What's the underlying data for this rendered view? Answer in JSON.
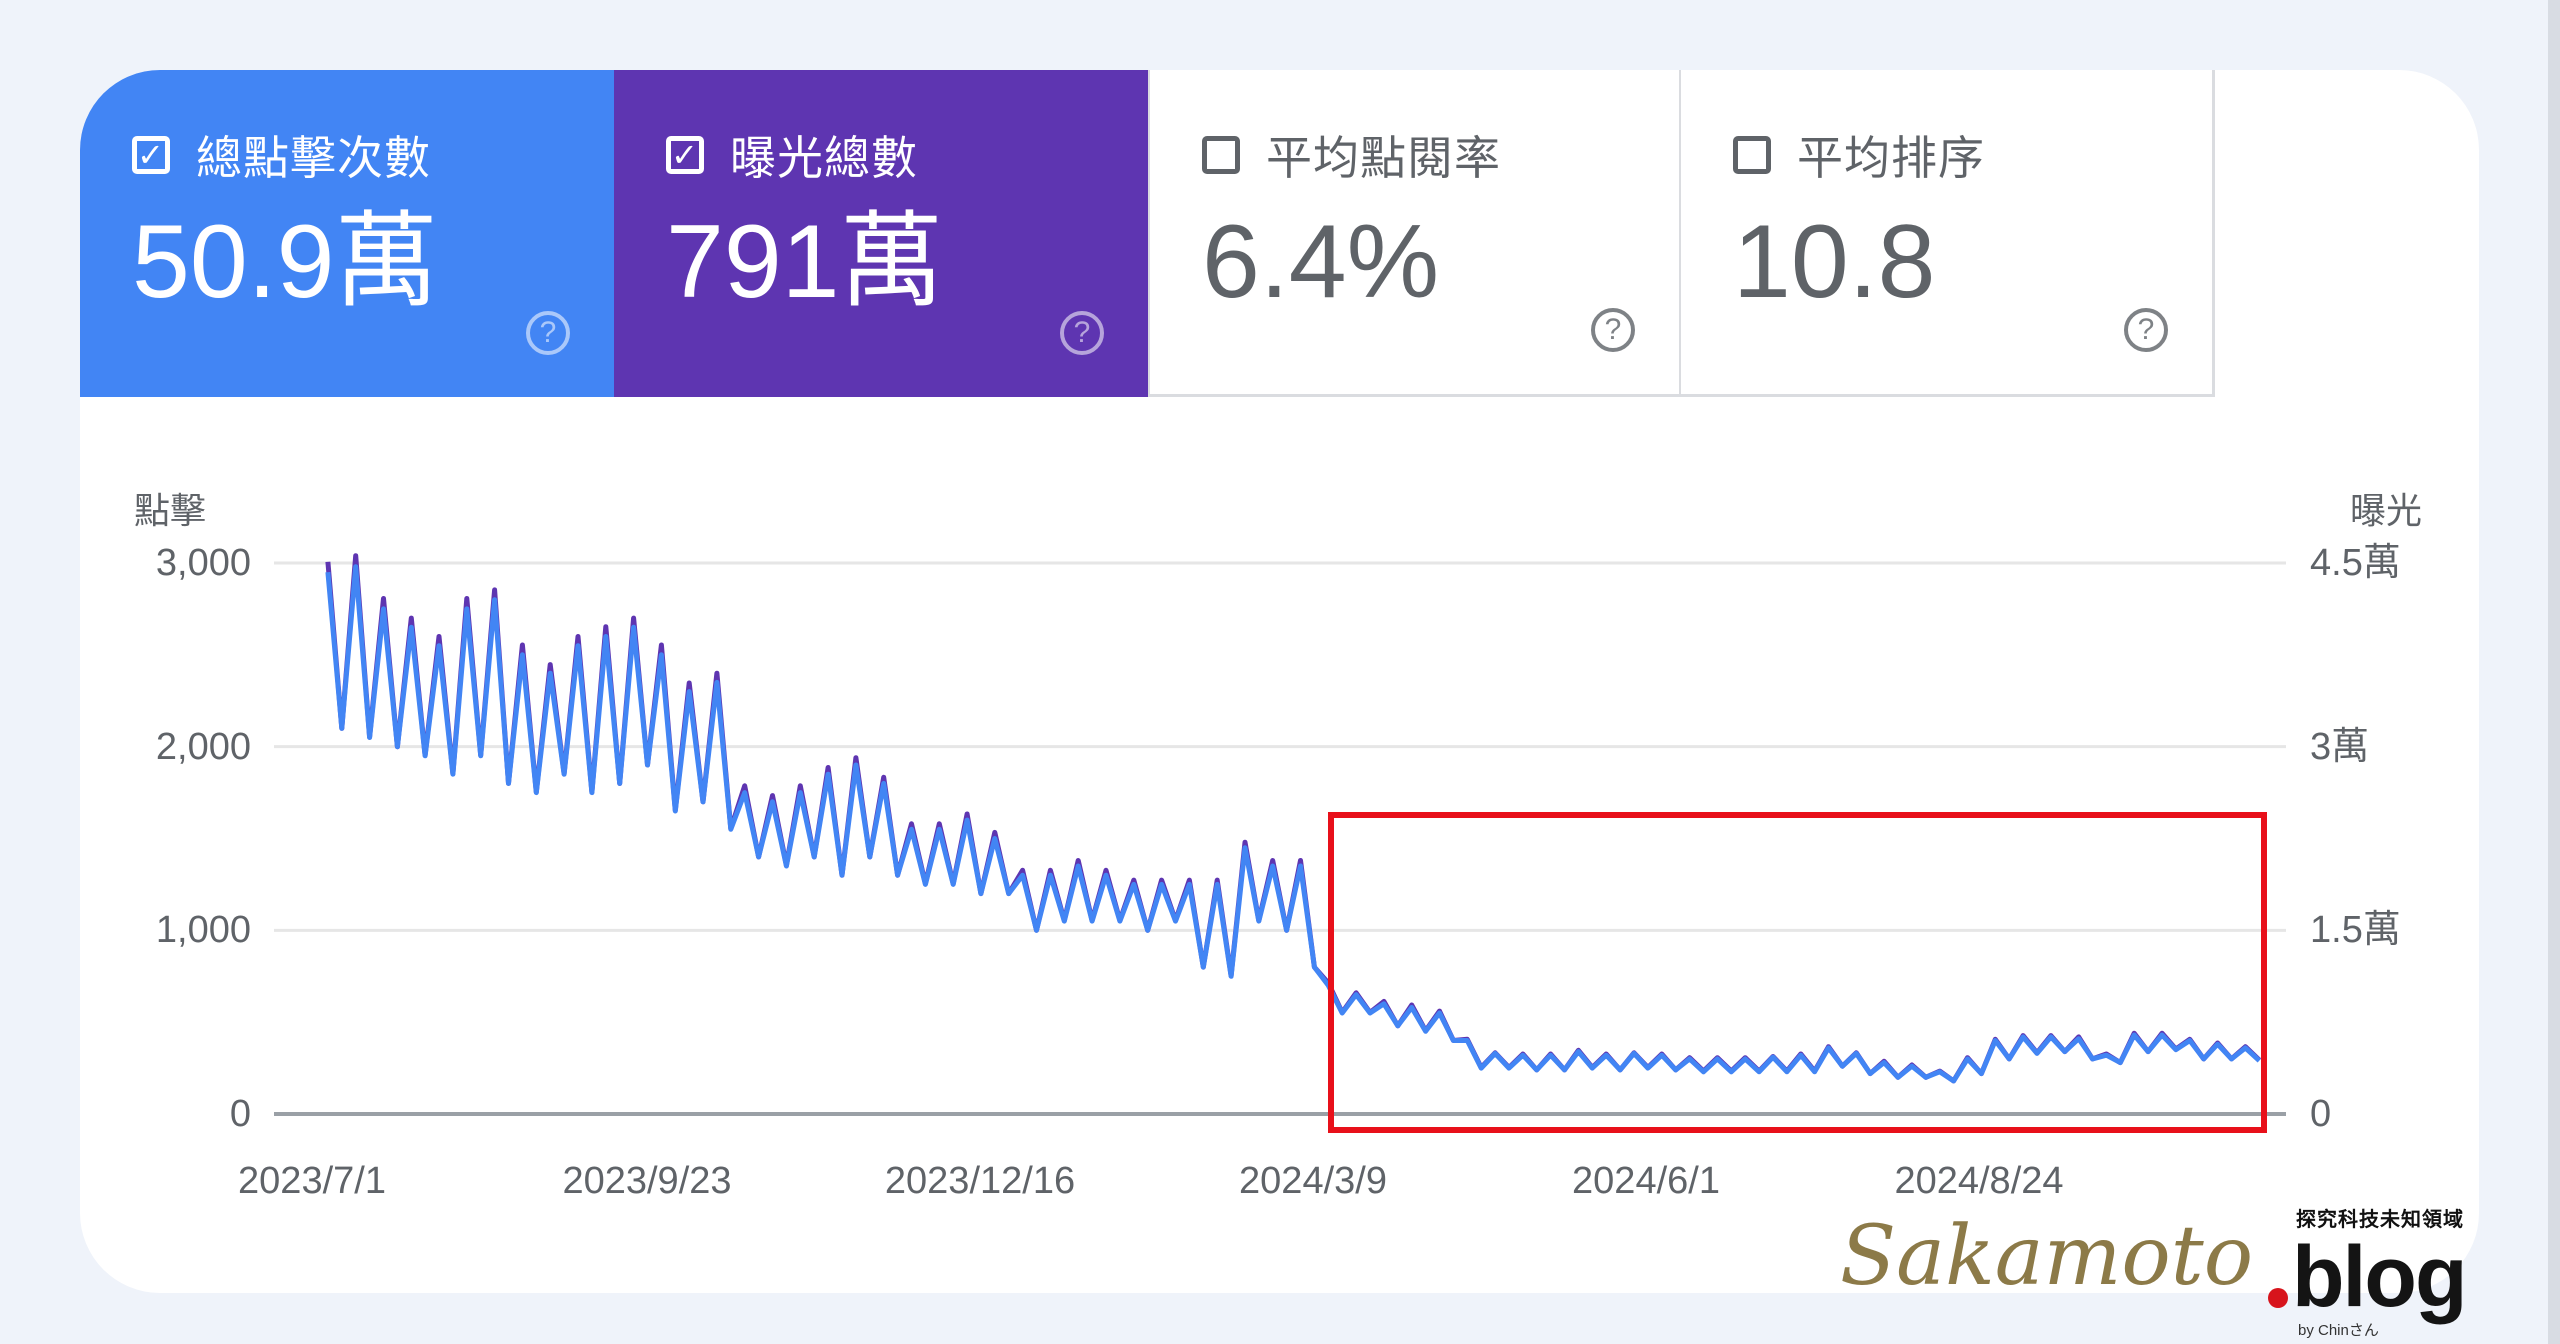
{
  "metrics": [
    {
      "label": "總點擊次數",
      "value": "50.9萬",
      "checked": true,
      "color": "#4285f4"
    },
    {
      "label": "曝光總數",
      "value": "791萬",
      "checked": true,
      "color": "#5e35b1"
    },
    {
      "label": "平均點閱率",
      "value": "6.4%",
      "checked": false
    },
    {
      "label": "平均排序",
      "value": "10.8",
      "checked": false
    }
  ],
  "icons": {
    "checked": "✓",
    "help": "?"
  },
  "watermark": {
    "brand": "Sakamoto",
    "tld": "blog",
    "tagline": "探究科技未知領域",
    "byline": "by Chinさん"
  },
  "chart_data": {
    "type": "line",
    "left_axis_title": "點擊",
    "right_axis_title": "曝光",
    "left_ylim": [
      0,
      3000
    ],
    "right_ylim": [
      0,
      4.5
    ],
    "left_ticks": [
      "0",
      "1,000",
      "2,000",
      "3,000"
    ],
    "right_ticks": [
      "0",
      "1.5萬",
      "3萬",
      "4.5萬"
    ],
    "x_ticks": [
      "2023/7/1",
      "2023/9/23",
      "2023/12/16",
      "2024/3/9",
      "2024/6/1",
      "2024/8/24"
    ],
    "xlim": [
      "2023-07-01",
      "2024-10-31"
    ],
    "grid": true,
    "highlight_box": {
      "from": "2024-03-11",
      "to": "2024-10-31",
      "color": "#e8101a"
    },
    "weeks": [
      "2023-07-03",
      "2023-07-10",
      "2023-07-17",
      "2023-07-24",
      "2023-07-31",
      "2023-08-07",
      "2023-08-14",
      "2023-08-21",
      "2023-08-28",
      "2023-09-04",
      "2023-09-11",
      "2023-09-18",
      "2023-09-25",
      "2023-10-02",
      "2023-10-09",
      "2023-10-16",
      "2023-10-23",
      "2023-10-30",
      "2023-11-06",
      "2023-11-13",
      "2023-11-20",
      "2023-11-27",
      "2023-12-04",
      "2023-12-11",
      "2023-12-18",
      "2023-12-25",
      "2024-01-01",
      "2024-01-08",
      "2024-01-15",
      "2024-01-22",
      "2024-01-29",
      "2024-02-05",
      "2024-02-12",
      "2024-02-19",
      "2024-02-26",
      "2024-03-04",
      "2024-03-11",
      "2024-03-18",
      "2024-03-25",
      "2024-04-01",
      "2024-04-08",
      "2024-04-15",
      "2024-04-22",
      "2024-04-29",
      "2024-05-06",
      "2024-05-13",
      "2024-05-20",
      "2024-05-27",
      "2024-06-03",
      "2024-06-10",
      "2024-06-17",
      "2024-06-24",
      "2024-07-01",
      "2024-07-08",
      "2024-07-15",
      "2024-07-22",
      "2024-07-29",
      "2024-08-05",
      "2024-08-12",
      "2024-08-19",
      "2024-08-26",
      "2024-09-02",
      "2024-09-09",
      "2024-09-16",
      "2024-09-23",
      "2024-09-30",
      "2024-10-07",
      "2024-10-14",
      "2024-10-21",
      "2024-10-28"
    ],
    "series": [
      {
        "key": "impressions",
        "axis": "right",
        "unit": "萬",
        "color": "#5e35b1",
        "weekday_high": [
          4.51,
          4.56,
          4.21,
          4.05,
          3.9,
          4.21,
          4.28,
          3.83,
          3.67,
          3.9,
          3.98,
          4.05,
          3.83,
          3.52,
          3.6,
          2.68,
          2.6,
          2.68,
          2.83,
          2.91,
          2.75,
          2.37,
          2.37,
          2.45,
          2.3,
          1.99,
          1.99,
          2.07,
          1.99,
          1.91,
          1.91,
          1.91,
          1.91,
          2.22,
          2.07,
          2.07,
          1.07,
          0.99,
          0.92,
          0.89,
          0.84,
          0.61,
          0.5,
          0.49,
          0.49,
          0.52,
          0.49,
          0.5,
          0.49,
          0.46,
          0.46,
          0.46,
          0.47,
          0.49,
          0.55,
          0.5,
          0.43,
          0.4,
          0.35,
          0.46,
          0.61,
          0.64,
          0.64,
          0.63,
          0.49,
          0.66,
          0.66,
          0.61,
          0.58,
          0.55
        ],
        "weekend_low": [
          3.15,
          3.08,
          3.0,
          2.93,
          2.78,
          2.93,
          2.7,
          2.63,
          2.78,
          2.63,
          2.7,
          2.85,
          2.48,
          2.55,
          2.33,
          2.1,
          2.03,
          2.1,
          1.95,
          2.1,
          1.95,
          1.88,
          1.88,
          1.8,
          1.8,
          1.5,
          1.58,
          1.58,
          1.58,
          1.5,
          1.58,
          1.2,
          1.13,
          1.58,
          1.5,
          1.2,
          0.83,
          0.83,
          0.72,
          0.68,
          0.6,
          0.38,
          0.38,
          0.36,
          0.36,
          0.38,
          0.36,
          0.38,
          0.36,
          0.35,
          0.35,
          0.35,
          0.35,
          0.35,
          0.39,
          0.33,
          0.3,
          0.3,
          0.27,
          0.33,
          0.45,
          0.5,
          0.51,
          0.45,
          0.42,
          0.51,
          0.53,
          0.45,
          0.45,
          0.44
        ]
      },
      {
        "key": "clicks",
        "axis": "left",
        "color": "#4285f4",
        "weekday_high": [
          2950,
          2980,
          2750,
          2650,
          2550,
          2750,
          2800,
          2500,
          2400,
          2550,
          2600,
          2650,
          2500,
          2300,
          2350,
          1750,
          1700,
          1750,
          1850,
          1900,
          1800,
          1550,
          1550,
          1600,
          1500,
          1300,
          1300,
          1350,
          1300,
          1250,
          1250,
          1250,
          1250,
          1450,
          1350,
          1350,
          700,
          650,
          600,
          580,
          550,
          400,
          330,
          320,
          320,
          340,
          320,
          330,
          320,
          300,
          300,
          300,
          310,
          320,
          360,
          330,
          280,
          260,
          230,
          300,
          400,
          420,
          420,
          410,
          320,
          430,
          430,
          400,
          380,
          360
        ],
        "weekend_low": [
          2100,
          2050,
          2000,
          1950,
          1850,
          1950,
          1800,
          1750,
          1850,
          1750,
          1800,
          1900,
          1650,
          1700,
          1550,
          1400,
          1350,
          1400,
          1300,
          1400,
          1300,
          1250,
          1250,
          1200,
          1200,
          1000,
          1050,
          1050,
          1050,
          1000,
          1050,
          800,
          750,
          1050,
          1000,
          800,
          550,
          550,
          480,
          450,
          400,
          250,
          250,
          240,
          240,
          250,
          240,
          250,
          240,
          230,
          230,
          230,
          230,
          230,
          260,
          220,
          200,
          200,
          180,
          220,
          300,
          330,
          340,
          300,
          280,
          340,
          350,
          300,
          300,
          290
        ]
      }
    ]
  }
}
